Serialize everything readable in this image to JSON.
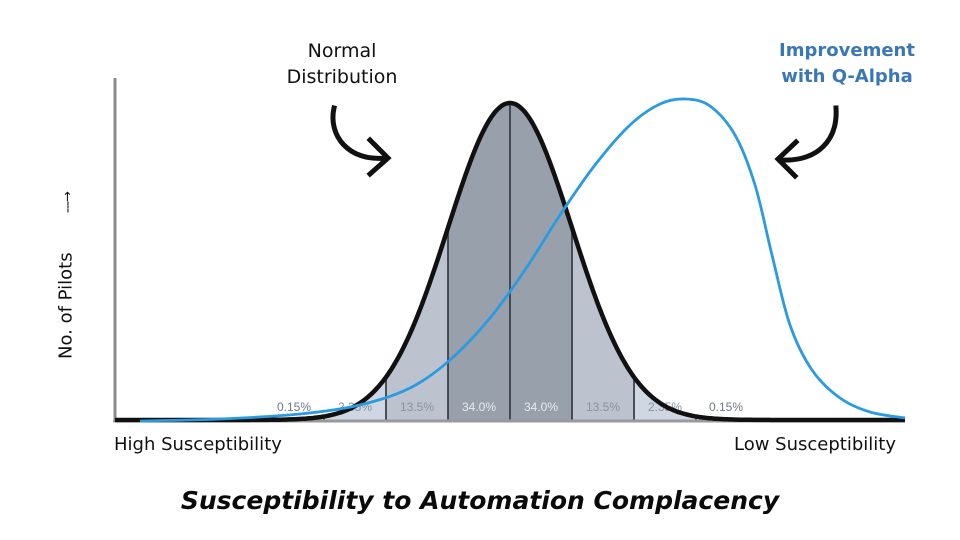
{
  "chart_data": {
    "type": "area",
    "title": "Susceptibility to Automation Complacency",
    "xlabel": "Susceptibility to Automation Complacency",
    "ylabel": "No. of Pilots",
    "x_axis_left_label": "High Susceptibility",
    "x_axis_right_label": "Low Susceptibility",
    "grid": false,
    "series": [
      {
        "name": "Normal Distribution",
        "kind": "normal curve",
        "color": "#111111",
        "mean_sd": 0,
        "segments_sd": [
          -4,
          -3,
          -2,
          -1,
          0,
          1,
          2,
          3,
          4
        ],
        "band_percentages": [
          "0.15%",
          "2.35%",
          "13.5%",
          "34.0%",
          "34.0%",
          "13.5%",
          "2.35%",
          "0.15%"
        ]
      },
      {
        "name": "Improvement with Q-Alpha",
        "kind": "skewed curve shifted toward low susceptibility",
        "color": "#2a9be0",
        "peak_position_sd": 2.7
      }
    ],
    "annotations": [
      {
        "text": "Normal Distribution",
        "points_to": "normal curve"
      },
      {
        "text": "Improvement with Q-Alpha",
        "points_to": "blue curve"
      }
    ]
  },
  "annotations": {
    "normal_line1": "Normal",
    "normal_line2": "Distribution",
    "improve_line1": "Improvement",
    "improve_line2": "with Q-Alpha"
  },
  "axes": {
    "ylabel": "No. of Pilots",
    "yarrow": "---→",
    "x_left": "High Susceptibility",
    "x_right": "Low Susceptibility"
  },
  "title": "Susceptibility to Automation Complacency",
  "bands": [
    {
      "label": "0.15%",
      "color": "#e6edf6",
      "text_color": "#707784"
    },
    {
      "label": "2.35%",
      "color": "#cfd7e3",
      "text_color": "#8b929e"
    },
    {
      "label": "13.5%",
      "color": "#bcc2ce",
      "text_color": "#8b929e"
    },
    {
      "label": "34.0%",
      "color": "#98a0ab",
      "text_color": "#e8ebef"
    },
    {
      "label": "34.0%",
      "color": "#98a0ab",
      "text_color": "#e8ebef"
    },
    {
      "label": "13.5%",
      "color": "#bcc2ce",
      "text_color": "#8b929e"
    },
    {
      "label": "2.35%",
      "color": "#cfd7e3",
      "text_color": "#8b929e"
    },
    {
      "label": "0.15%",
      "color": "#e6edf6",
      "text_color": "#707784"
    }
  ],
  "colors": {
    "accent_blue": "#2a9be0",
    "annotation_blue": "#3a78b5",
    "curve_black": "#111111",
    "axis_gray": "#8a8a8a"
  }
}
